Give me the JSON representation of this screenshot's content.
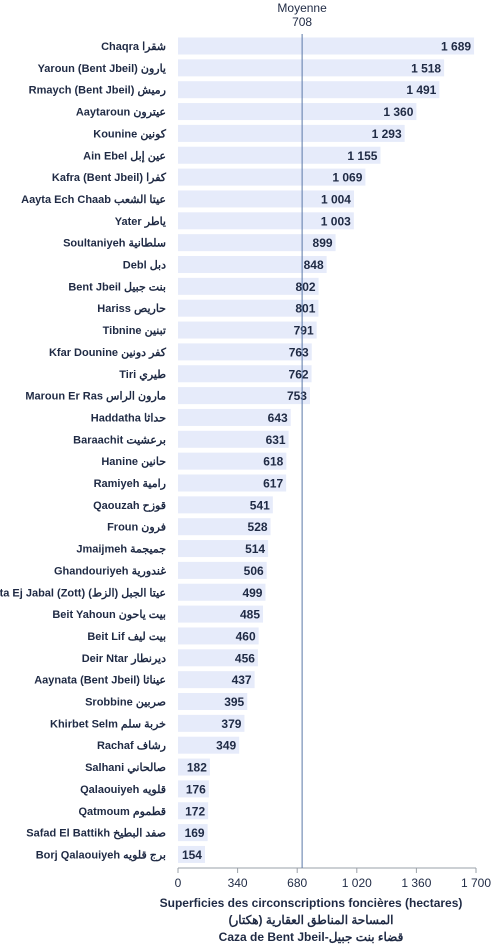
{
  "chart_data": {
    "type": "bar",
    "orientation": "horizontal",
    "categories": [
      "Chaqra شقرا",
      "Yaroun (Bent Jbeil) يارون",
      "Rmaych (Bent Jbeil) رميش",
      "Aaytaroun عيترون",
      "Kounine كونين",
      "Ain Ebel عين إبل",
      "Kafra (Bent Jbeil) كفرا",
      "Aayta Ech Chaab عيتا الشعب",
      "Yater ياطر",
      "Soultaniyeh سلطانية",
      "Debl دبل",
      "Bent Jbeil بنت جبيل",
      "Hariss حاريص",
      "Tibnine تبنين",
      "Kfar Dounine كفر دونين",
      "Tiri طيري",
      "Maroun Er Ras مارون الراس",
      "Haddatha حداثا",
      "Baraachit برعشيت",
      "Hanine حانين",
      "Ramiyeh رامية",
      "Qaouzah قوزح",
      "Froun فرون",
      "Jmaijmeh جميجمة",
      "Ghandouriyeh غندورية",
      "Aayta Ej Jabal (Zott) عيتا الجبل (الزط)",
      "Beit Yahoun بيت ياحون",
      "Beit Lif بيت ليف",
      "Deir Ntar ديرنطار",
      "Aaynata (Bent Jbeil) عيناثا",
      "Srobbine صربين",
      "Khirbet Selm خربة سلم",
      "Rachaf رشاف",
      "Salhani صالحاني",
      "Qalaouiyeh قلويه",
      "Qatmoum قطموم",
      "Safad El Battikh صفد البطيخ",
      "Borj Qalaouiyeh برج قلويه"
    ],
    "values": [
      1689,
      1518,
      1491,
      1360,
      1293,
      1155,
      1069,
      1004,
      1003,
      899,
      848,
      802,
      801,
      791,
      763,
      762,
      753,
      643,
      631,
      618,
      617,
      541,
      528,
      514,
      506,
      499,
      485,
      460,
      456,
      437,
      395,
      379,
      349,
      182,
      176,
      172,
      169,
      154
    ],
    "value_labels": [
      "1 689",
      "1 518",
      "1 491",
      "1 360",
      "1 293",
      "1 155",
      "1 069",
      "1 004",
      "1 003",
      "899",
      "848",
      "802",
      "801",
      "791",
      "763",
      "762",
      "753",
      "643",
      "631",
      "618",
      "617",
      "541",
      "528",
      "514",
      "506",
      "499",
      "485",
      "460",
      "456",
      "437",
      "395",
      "379",
      "349",
      "182",
      "176",
      "172",
      "169",
      "154"
    ],
    "xlim": [
      0,
      1700
    ],
    "xticks": [
      0,
      340,
      680,
      1020,
      1360,
      1700
    ],
    "xtick_labels": [
      "0",
      "340",
      "680",
      "1 020",
      "1 360",
      "1 700"
    ],
    "average": {
      "label": "Moyenne",
      "value": 708,
      "value_label": "708"
    },
    "xlabel_lines": [
      "Superficies des circonscriptions foncières (hectares)",
      "المساحة المناطق العقارية (هكتار)",
      "Caza de Bent Jbeil-قضاء بنت جبيل"
    ],
    "grid": false,
    "colors": {
      "bar": "#e6ebfa",
      "average_line": "#5b78a8",
      "axis": "#9aa0a8",
      "text": "#1f2a44"
    }
  }
}
